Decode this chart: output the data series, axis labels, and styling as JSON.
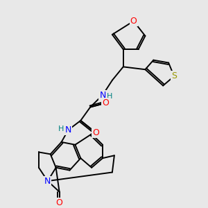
{
  "background_color": "#e8e8e8",
  "bond_color": "#000000",
  "atom_colors": {
    "O": "#ff0000",
    "N": "#0000ff",
    "S": "#999900",
    "C": "#000000",
    "H": "#008080"
  },
  "figsize": [
    3.0,
    3.0
  ],
  "dpi": 100
}
